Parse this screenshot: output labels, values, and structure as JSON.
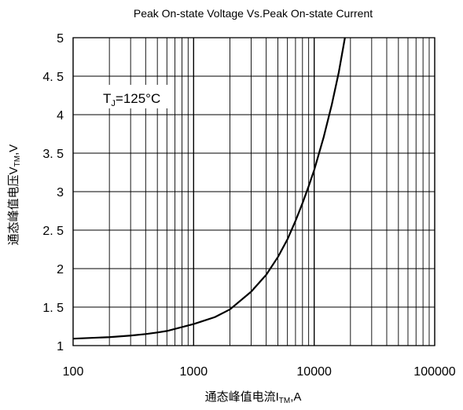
{
  "chart_data": {
    "type": "line",
    "title": "Peak On-state Voltage Vs.Peak On-state Current",
    "xlabel_main": "通态峰值电流I",
    "xlabel_sub": "TM",
    "xlabel_tail": ",A",
    "ylabel_main": "通态峰值电压V",
    "ylabel_sub": "TM",
    "ylabel_tail": ",V",
    "annotation": {
      "main": "T",
      "sub": "J",
      "tail": "=125°C"
    },
    "x_scale": "log",
    "xlim": [
      100,
      100000
    ],
    "ylim": [
      1,
      5
    ],
    "x_ticks": [
      "100",
      "1000",
      "10000",
      "100000"
    ],
    "y_ticks": [
      "1",
      "1. 5",
      "2",
      "2. 5",
      "3",
      "3. 5",
      "4",
      "4. 5",
      "5"
    ],
    "grid": true,
    "series": [
      {
        "x": [
          100,
          200,
          300,
          400,
          500,
          600,
          800,
          1000,
          1500,
          2000,
          3000,
          4000,
          5000,
          6000,
          7000,
          8000,
          9000,
          10000,
          12000,
          14000,
          16000,
          18000
        ],
        "y": [
          1.09,
          1.11,
          1.13,
          1.15,
          1.17,
          1.19,
          1.24,
          1.28,
          1.37,
          1.47,
          1.7,
          1.92,
          2.15,
          2.38,
          2.62,
          2.85,
          3.07,
          3.28,
          3.71,
          4.13,
          4.55,
          5.0
        ]
      }
    ],
    "colors": {
      "line": "#000000",
      "grid": "#000000"
    }
  }
}
